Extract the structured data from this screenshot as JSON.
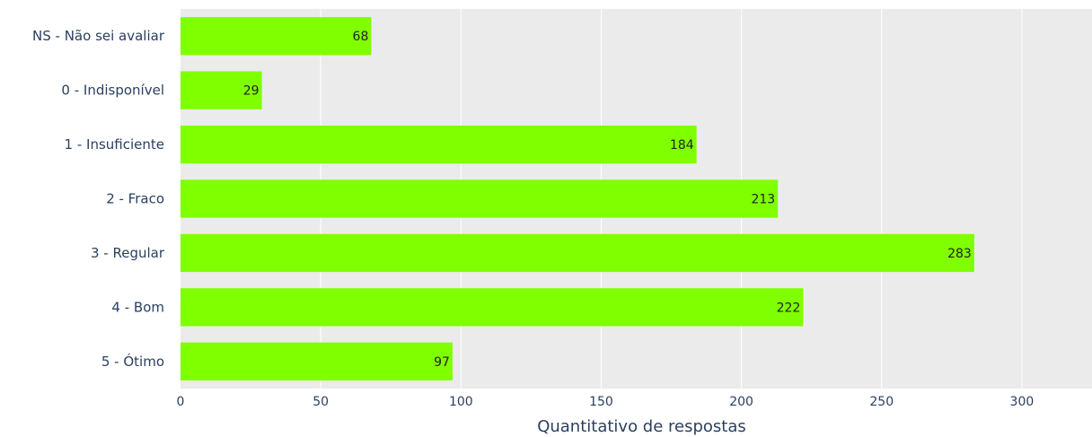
{
  "chart_data": {
    "type": "bar",
    "orientation": "horizontal",
    "categories": [
      "NS - Não sei avaliar",
      "0 - Indisponível",
      "1 - Insuficiente",
      "2 - Fraco",
      "3 - Regular",
      "4 - Bom",
      "5 - Ótimo"
    ],
    "values": [
      68,
      29,
      184,
      213,
      283,
      222,
      97
    ],
    "value_labels": [
      "68",
      "29",
      "184",
      "213",
      "283",
      "222",
      "97"
    ],
    "xlabel": "Quantitativo de respostas",
    "ylabel": "",
    "xlim": [
      0,
      325
    ],
    "x_ticks": [
      0,
      50,
      100,
      150,
      200,
      250,
      300
    ],
    "x_tick_labels": [
      "0",
      "50",
      "100",
      "150",
      "200",
      "250",
      "300"
    ],
    "grid": true,
    "legend": "none",
    "colors": {
      "bar": "#7fff00",
      "plot_background": "#ebebeb",
      "grid": "#ffffff"
    }
  }
}
